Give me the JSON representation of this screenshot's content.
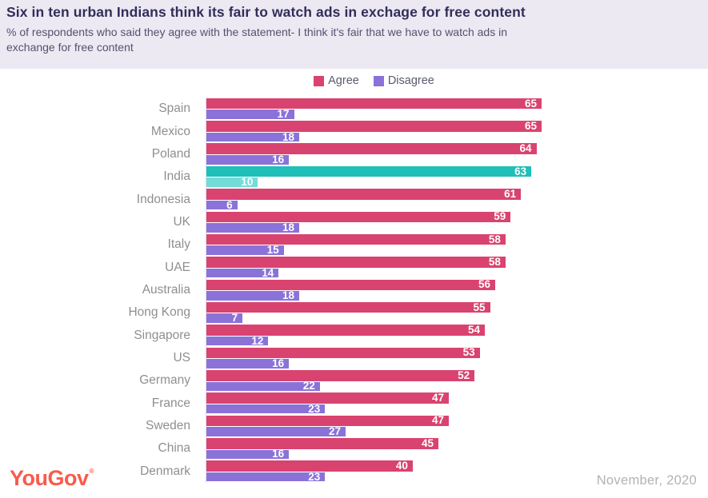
{
  "header": {
    "title": "Six in ten urban Indians think its fair to watch ads in exchage for free content",
    "subtitle_line1": "% of respondents who said they agree with the statement- I think it's fair that we have to watch ads in",
    "subtitle_line2": "exchange for free content"
  },
  "legend": {
    "agree_label": "Agree",
    "disagree_label": "Disagree"
  },
  "footer": {
    "logo_text": "YouGov",
    "registered_mark": "®",
    "date_text": "November, 2020"
  },
  "colors": {
    "agree": "#D9436F",
    "disagree": "#8B72D9",
    "highlight_agree": "#1FBFBA",
    "highlight_disagree": "#73DCD7",
    "header_background": "#ECE9F3",
    "title_text": "#322E5A",
    "logo_coral": "#FA5A4C"
  },
  "chart_data": {
    "type": "bar",
    "orientation": "horizontal",
    "title": "Six in ten urban Indians think its fair to watch ads in exchage for free content",
    "subtitle": "% of respondents who said they agree with the statement- I think it's fair that we have to watch ads in exchange for free content",
    "categories": [
      "Spain",
      "Mexico",
      "Poland",
      "India",
      "Indonesia",
      "UK",
      "Italy",
      "UAE",
      "Australia",
      "Hong Kong",
      "Singapore",
      "US",
      "Germany",
      "France",
      "Sweden",
      "China",
      "Denmark"
    ],
    "series": [
      {
        "name": "Agree",
        "values": [
          65,
          65,
          64,
          63,
          61,
          59,
          58,
          58,
          56,
          55,
          54,
          53,
          52,
          47,
          47,
          45,
          40
        ]
      },
      {
        "name": "Disagree",
        "values": [
          17,
          18,
          16,
          10,
          6,
          18,
          15,
          14,
          18,
          7,
          12,
          16,
          22,
          23,
          27,
          16,
          23
        ]
      }
    ],
    "highlighted_category": "India",
    "value_labels": true,
    "xlim": [
      0,
      65
    ],
    "grid": false,
    "legend_position": "top",
    "footer_note": "November, 2020"
  }
}
